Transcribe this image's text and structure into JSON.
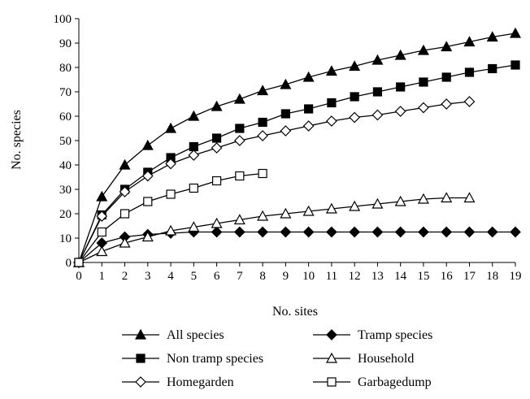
{
  "chart_data": {
    "type": "line",
    "title": "",
    "xlabel": "No. sites",
    "ylabel": "No. species",
    "xlim": [
      0,
      19
    ],
    "ylim": [
      0,
      100
    ],
    "x_ticks": [
      "0",
      "1",
      "2",
      "3",
      "4",
      "5",
      "6",
      "7",
      "8",
      "9",
      "10",
      "11",
      "12",
      "13",
      "14",
      "15",
      "16",
      "17",
      "18",
      "19"
    ],
    "y_ticks": [
      "0",
      "10",
      "20",
      "30",
      "40",
      "50",
      "60",
      "70",
      "80",
      "90",
      "100"
    ],
    "grid": false,
    "legend_position": "bottom",
    "series": [
      {
        "name": "All species",
        "marker": "triangle-filled",
        "x": [
          0,
          1,
          2,
          3,
          4,
          5,
          6,
          7,
          8,
          9,
          10,
          11,
          12,
          13,
          14,
          15,
          16,
          17,
          18,
          19
        ],
        "values": [
          0,
          27,
          40,
          48,
          55,
          60,
          64,
          67,
          70.5,
          73,
          76,
          78.5,
          80.5,
          83,
          85,
          87,
          88.5,
          90.5,
          92.5,
          94
        ]
      },
      {
        "name": "Tramp species",
        "marker": "diamond-filled",
        "x": [
          0,
          1,
          2,
          3,
          4,
          5,
          6,
          7,
          8,
          9,
          10,
          11,
          12,
          13,
          14,
          15,
          16,
          17,
          18,
          19
        ],
        "values": [
          0,
          8,
          10.5,
          11.5,
          12,
          12.5,
          12.5,
          12.5,
          12.5,
          12.5,
          12.5,
          12.5,
          12.5,
          12.5,
          12.5,
          12.5,
          12.5,
          12.5,
          12.5,
          12.5
        ]
      },
      {
        "name": "Non tramp species",
        "marker": "square-filled",
        "x": [
          0,
          1,
          2,
          3,
          4,
          5,
          6,
          7,
          8,
          9,
          10,
          11,
          12,
          13,
          14,
          15,
          16,
          17,
          18,
          19
        ],
        "values": [
          0,
          19.5,
          30,
          37,
          43,
          47.5,
          51,
          55,
          57.5,
          61,
          63,
          65.5,
          68,
          70,
          72,
          74,
          76,
          78,
          79.5,
          81
        ]
      },
      {
        "name": "Household",
        "marker": "triangle-open",
        "x": [
          0,
          1,
          2,
          3,
          4,
          5,
          6,
          7,
          8,
          9,
          10,
          11,
          12,
          13,
          14,
          15,
          16,
          17
        ],
        "values": [
          0,
          4.5,
          8,
          10.5,
          13,
          14.5,
          16,
          17.5,
          19,
          20,
          21,
          22,
          23,
          24,
          25,
          26,
          26.5,
          26.5
        ]
      },
      {
        "name": "Homegarden",
        "marker": "diamond-open",
        "x": [
          0,
          1,
          2,
          3,
          4,
          5,
          6,
          7,
          8,
          9,
          10,
          11,
          12,
          13,
          14,
          15,
          16,
          17
        ],
        "values": [
          0,
          19,
          29,
          35.5,
          40.5,
          44,
          47,
          50,
          52,
          54,
          56,
          58,
          59.5,
          60.5,
          62,
          63.5,
          65,
          66
        ]
      },
      {
        "name": "Garbagedump",
        "marker": "square-open",
        "x": [
          0,
          1,
          2,
          3,
          4,
          5,
          6,
          7,
          8
        ],
        "values": [
          0,
          12.5,
          20,
          25,
          28,
          30.5,
          33.5,
          35.5,
          36.5
        ]
      }
    ]
  }
}
